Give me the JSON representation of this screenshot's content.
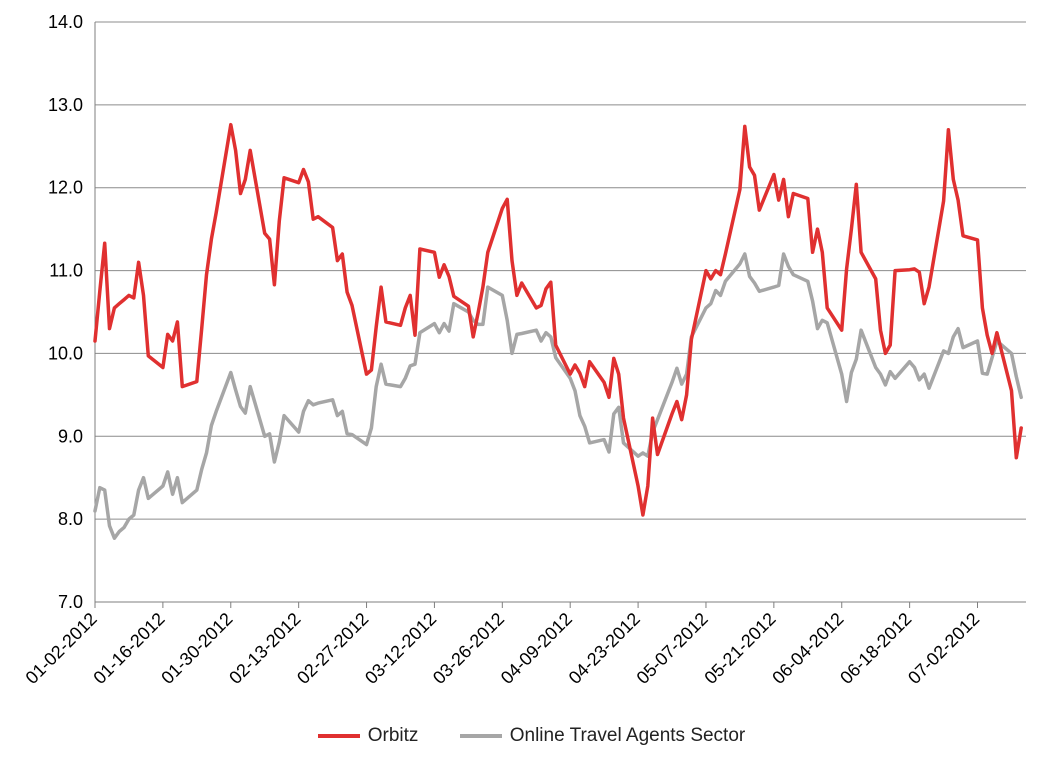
{
  "chart_data": {
    "type": "line",
    "title": "",
    "xlabel": "",
    "ylabel": "",
    "ylim": [
      7.0,
      14.0
    ],
    "y_ticks": [
      "14.0",
      "13.0",
      "12.0",
      "11.0",
      "10.0",
      "9.0",
      "8.0",
      "7.0"
    ],
    "x_ticks": [
      "01-02-2012",
      "01-16-2012",
      "01-30-2012",
      "02-13-2012",
      "02-27-2012",
      "03-12-2012",
      "03-26-2012",
      "04-09-2012",
      "04-23-2012",
      "05-07-2012",
      "05-21-2012",
      "06-04-2012",
      "06-18-2012",
      "07-02-2012"
    ],
    "x_range_days": [
      0,
      192
    ],
    "x_tick_days": [
      0,
      14,
      28,
      42,
      56,
      70,
      84,
      98,
      112,
      126,
      140,
      154,
      168,
      182
    ],
    "grid": true,
    "legend_position": "bottom",
    "series": [
      {
        "name": "Orbitz",
        "color": "#e03030",
        "x": [
          0,
          1,
          2,
          3,
          4,
          5,
          6,
          7,
          8,
          9,
          10,
          11,
          14,
          15,
          16,
          17,
          18,
          21,
          22,
          23,
          24,
          25,
          28,
          29,
          30,
          31,
          32,
          35,
          36,
          37,
          38,
          39,
          42,
          43,
          44,
          45,
          46,
          49,
          50,
          51,
          52,
          53,
          56,
          57,
          58,
          59,
          60,
          63,
          64,
          65,
          66,
          67,
          70,
          71,
          72,
          73,
          74,
          77,
          78,
          79,
          80,
          81,
          84,
          85,
          86,
          87,
          88,
          91,
          92,
          93,
          94,
          95,
          98,
          99,
          100,
          101,
          102,
          105,
          106,
          107,
          108,
          109,
          112,
          113,
          114,
          115,
          116,
          119,
          120,
          121,
          122,
          123,
          126,
          127,
          128,
          129,
          130,
          133,
          134,
          135,
          136,
          137,
          140,
          141,
          142,
          143,
          144,
          147,
          148,
          149,
          150,
          151,
          154,
          155,
          156,
          157,
          158,
          161,
          162,
          163,
          164,
          165,
          168,
          169,
          170,
          171,
          172,
          175,
          176,
          177,
          178,
          179,
          182,
          183,
          184,
          185,
          186,
          189,
          190,
          191
        ],
        "y": [
          10.15,
          10.75,
          11.33,
          10.3,
          10.55,
          10.6,
          10.65,
          10.7,
          10.67,
          11.1,
          10.7,
          9.97,
          9.83,
          10.23,
          10.15,
          10.38,
          9.6,
          9.66,
          10.3,
          10.95,
          11.38,
          11.7,
          12.76,
          12.45,
          11.93,
          12.1,
          12.45,
          11.45,
          11.38,
          10.83,
          11.6,
          12.12,
          12.06,
          12.22,
          12.07,
          11.62,
          11.65,
          11.52,
          11.12,
          11.2,
          10.74,
          10.58,
          9.75,
          9.8,
          10.32,
          10.8,
          10.38,
          10.34,
          10.55,
          10.7,
          10.22,
          11.26,
          11.22,
          10.92,
          11.07,
          10.93,
          10.69,
          10.57,
          10.2,
          10.49,
          10.8,
          11.22,
          11.75,
          11.86,
          11.12,
          10.7,
          10.85,
          10.55,
          10.58,
          10.78,
          10.86,
          10.1,
          9.75,
          9.86,
          9.76,
          9.6,
          9.9,
          9.65,
          9.47,
          9.94,
          9.75,
          9.22,
          8.4,
          8.05,
          8.4,
          9.22,
          8.78,
          9.27,
          9.42,
          9.2,
          9.5,
          10.17,
          11.0,
          10.9,
          11.0,
          10.95,
          11.2,
          11.98,
          12.74,
          12.25,
          12.15,
          11.73,
          12.16,
          11.85,
          12.1,
          11.65,
          11.93,
          11.87,
          11.22,
          11.5,
          11.22,
          10.55,
          10.28,
          11.02,
          11.5,
          12.04,
          11.22,
          10.9,
          10.28,
          10.0,
          10.1,
          11.0,
          11.01,
          11.02,
          10.98,
          10.6,
          10.8,
          11.84,
          12.7,
          12.1,
          11.85,
          11.42,
          11.37,
          10.55,
          10.22,
          10.0,
          10.25,
          9.55,
          8.74,
          9.1
        ]
      },
      {
        "name": "Online Travel Agents Sector",
        "color": "#a6a6a6",
        "x": [
          0,
          1,
          2,
          3,
          4,
          5,
          6,
          7,
          8,
          9,
          10,
          11,
          14,
          15,
          16,
          17,
          18,
          21,
          22,
          23,
          24,
          25,
          28,
          29,
          30,
          31,
          32,
          35,
          36,
          37,
          38,
          39,
          42,
          43,
          44,
          45,
          46,
          49,
          50,
          51,
          52,
          53,
          56,
          57,
          58,
          59,
          60,
          63,
          64,
          65,
          66,
          67,
          70,
          71,
          72,
          73,
          74,
          77,
          78,
          79,
          80,
          81,
          84,
          85,
          86,
          87,
          88,
          91,
          92,
          93,
          94,
          95,
          98,
          99,
          100,
          101,
          102,
          105,
          106,
          107,
          108,
          109,
          112,
          113,
          114,
          115,
          116,
          119,
          120,
          121,
          122,
          123,
          126,
          127,
          128,
          129,
          130,
          133,
          134,
          135,
          136,
          137,
          140,
          141,
          142,
          143,
          144,
          147,
          148,
          149,
          150,
          151,
          154,
          155,
          156,
          157,
          158,
          161,
          162,
          163,
          164,
          165,
          168,
          169,
          170,
          171,
          172,
          175,
          176,
          177,
          178,
          179,
          182,
          183,
          184,
          185,
          186,
          189,
          190,
          191
        ],
        "y": [
          8.1,
          8.38,
          8.35,
          7.92,
          7.77,
          7.85,
          7.9,
          8.0,
          8.05,
          8.35,
          8.5,
          8.25,
          8.4,
          8.57,
          8.3,
          8.5,
          8.2,
          8.35,
          8.6,
          8.8,
          9.13,
          9.3,
          9.77,
          9.56,
          9.36,
          9.28,
          9.6,
          9.0,
          9.03,
          8.69,
          8.93,
          9.25,
          9.05,
          9.3,
          9.43,
          9.38,
          9.4,
          9.44,
          9.25,
          9.3,
          9.03,
          9.02,
          8.9,
          9.1,
          9.6,
          9.87,
          9.63,
          9.6,
          9.7,
          9.85,
          9.87,
          10.25,
          10.36,
          10.25,
          10.36,
          10.27,
          10.6,
          10.5,
          10.4,
          10.35,
          10.35,
          10.8,
          10.7,
          10.4,
          10.0,
          10.23,
          10.24,
          10.28,
          10.15,
          10.25,
          10.2,
          9.95,
          9.7,
          9.55,
          9.25,
          9.12,
          8.92,
          8.96,
          8.81,
          9.27,
          9.35,
          8.92,
          8.76,
          8.8,
          8.76,
          9.05,
          9.2,
          9.65,
          9.82,
          9.63,
          9.75,
          10.2,
          10.55,
          10.6,
          10.76,
          10.7,
          10.87,
          11.08,
          11.2,
          10.93,
          10.85,
          10.75,
          10.8,
          10.82,
          11.2,
          11.05,
          10.95,
          10.87,
          10.63,
          10.3,
          10.4,
          10.37,
          9.75,
          9.42,
          9.77,
          9.93,
          10.28,
          9.83,
          9.75,
          9.62,
          9.78,
          9.7,
          9.9,
          9.83,
          9.68,
          9.75,
          9.58,
          10.03,
          10.0,
          10.2,
          10.3,
          10.07,
          10.15,
          9.76,
          9.75,
          9.95,
          10.15,
          10.0,
          9.72,
          9.47
        ]
      }
    ]
  }
}
